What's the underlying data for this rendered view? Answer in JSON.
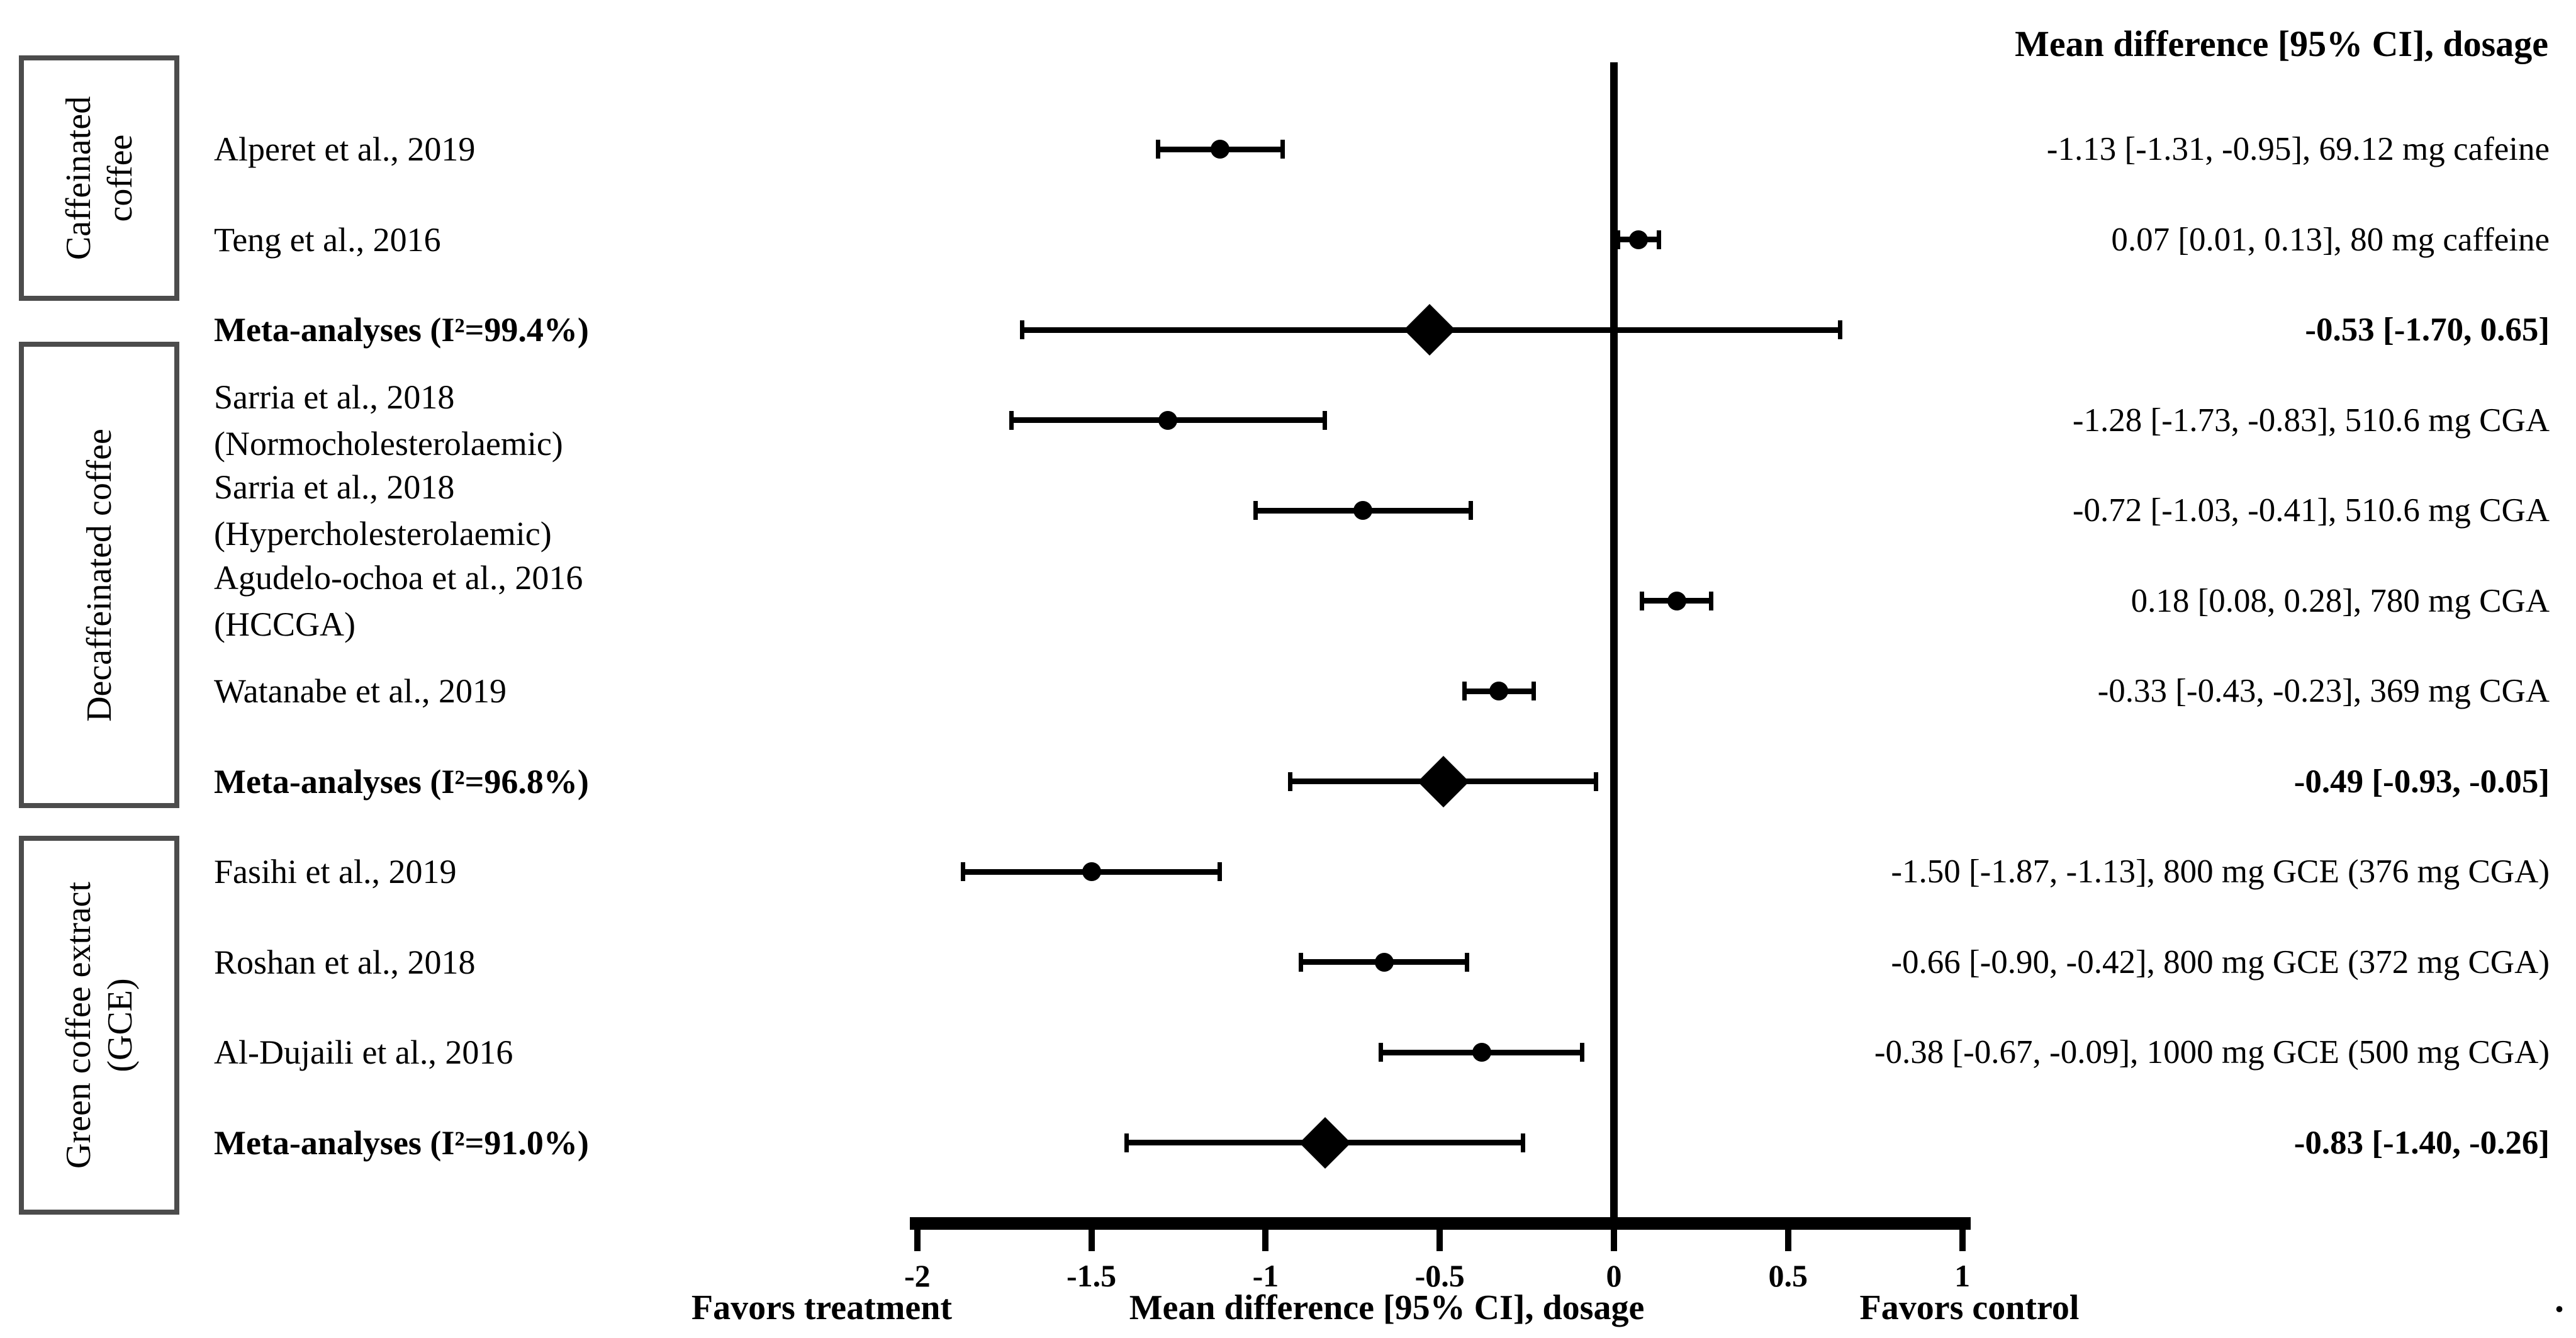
{
  "header": {
    "column_title": "Mean difference [95% CI], dosage"
  },
  "groups": [
    {
      "lines": [
        "Caffeinated",
        "coffee"
      ]
    },
    {
      "lines": [
        "Decaffeinated coffee"
      ]
    },
    {
      "lines": [
        "Green coffee extract",
        "(GCE)"
      ]
    }
  ],
  "footer": {
    "favors_left": "Favors treatment",
    "xlabel": "Mean difference [95% CI], dosage",
    "favors_right": "Favors control",
    "trailing_period": "."
  },
  "colors": {
    "ink": "#000000",
    "box_border": "#4c4c4c",
    "background": "#ffffff"
  },
  "chart_data": {
    "type": "forest",
    "title": "Mean difference [95% CI], dosage",
    "xlabel": "Mean difference [95% CI], dosage",
    "xlim": [
      -2,
      1
    ],
    "axis_tick_values": [
      -2,
      -1.5,
      -1,
      -0.5,
      0,
      0.5,
      1
    ],
    "axis_tick_labels": [
      "-2",
      "-1.5",
      "-1",
      "-0.5",
      "0",
      "0.5",
      "1"
    ],
    "zero_reference_line": 0,
    "legend_position": "none",
    "grid": false,
    "rows": [
      {
        "group": "Caffeinated coffee",
        "label_lines": [
          "Alperet et al., 2019"
        ],
        "mean": -1.13,
        "ci_low": -1.31,
        "ci_high": -0.95,
        "marker": "circle",
        "bold": false,
        "annotation": "-1.13 [-1.31, -0.95], 69.12 mg cafeine"
      },
      {
        "group": "Caffeinated coffee",
        "label_lines": [
          "Teng et al., 2016"
        ],
        "mean": 0.07,
        "ci_low": 0.01,
        "ci_high": 0.13,
        "marker": "circle",
        "bold": false,
        "annotation": "0.07 [0.01, 0.13], 80 mg caffeine"
      },
      {
        "group": "Caffeinated coffee",
        "label_lines": [
          "Meta-analyses (I²=99.4%)"
        ],
        "mean": -0.53,
        "ci_low": -1.7,
        "ci_high": 0.65,
        "marker": "diamond",
        "bold": true,
        "annotation": "-0.53 [-1.70, 0.65]"
      },
      {
        "group": "Decaffeinated coffee",
        "label_lines": [
          "Sarria et al., 2018",
          "(Normocholesterolaemic)"
        ],
        "mean": -1.28,
        "ci_low": -1.73,
        "ci_high": -0.83,
        "marker": "circle",
        "bold": false,
        "annotation": "-1.28 [-1.73, -0.83], 510.6 mg CGA"
      },
      {
        "group": "Decaffeinated coffee",
        "label_lines": [
          "Sarria et al., 2018",
          "(Hypercholesterolaemic)"
        ],
        "mean": -0.72,
        "ci_low": -1.03,
        "ci_high": -0.41,
        "marker": "circle",
        "bold": false,
        "annotation": "-0.72 [-1.03, -0.41], 510.6 mg CGA"
      },
      {
        "group": "Decaffeinated coffee",
        "label_lines": [
          "Agudelo-ochoa et al., 2016",
          "(HCCGA)"
        ],
        "mean": 0.18,
        "ci_low": 0.08,
        "ci_high": 0.28,
        "marker": "circle",
        "bold": false,
        "annotation": "0.18 [0.08, 0.28], 780 mg CGA"
      },
      {
        "group": "Decaffeinated coffee",
        "label_lines": [
          "Watanabe et al., 2019"
        ],
        "mean": -0.33,
        "ci_low": -0.43,
        "ci_high": -0.23,
        "marker": "circle",
        "bold": false,
        "annotation": "-0.33 [-0.43, -0.23], 369 mg CGA"
      },
      {
        "group": "Decaffeinated coffee",
        "label_lines": [
          "Meta-analyses (I²=96.8%)"
        ],
        "mean": -0.49,
        "ci_low": -0.93,
        "ci_high": -0.05,
        "marker": "diamond",
        "bold": true,
        "annotation": "-0.49 [-0.93, -0.05]"
      },
      {
        "group": "Green coffee extract (GCE)",
        "label_lines": [
          "Fasihi et al., 2019"
        ],
        "mean": -1.5,
        "ci_low": -1.87,
        "ci_high": -1.13,
        "marker": "circle",
        "bold": false,
        "annotation": "-1.50 [-1.87, -1.13], 800 mg GCE (376 mg CGA)"
      },
      {
        "group": "Green coffee extract (GCE)",
        "label_lines": [
          "Roshan et al., 2018"
        ],
        "mean": -0.66,
        "ci_low": -0.9,
        "ci_high": -0.42,
        "marker": "circle",
        "bold": false,
        "annotation": "-0.66 [-0.90, -0.42], 800 mg GCE (372 mg CGA)"
      },
      {
        "group": "Green coffee extract (GCE)",
        "label_lines": [
          "Al-Dujaili et al., 2016"
        ],
        "mean": -0.38,
        "ci_low": -0.67,
        "ci_high": -0.09,
        "marker": "circle",
        "bold": false,
        "annotation": "-0.38 [-0.67, -0.09], 1000 mg GCE (500 mg CGA)"
      },
      {
        "group": "Green coffee extract (GCE)",
        "label_lines": [
          "Meta-analyses (I²=91.0%)"
        ],
        "mean": -0.83,
        "ci_low": -1.4,
        "ci_high": -0.26,
        "marker": "diamond",
        "bold": true,
        "annotation": "-0.83 [-1.40, -0.26]"
      }
    ]
  }
}
